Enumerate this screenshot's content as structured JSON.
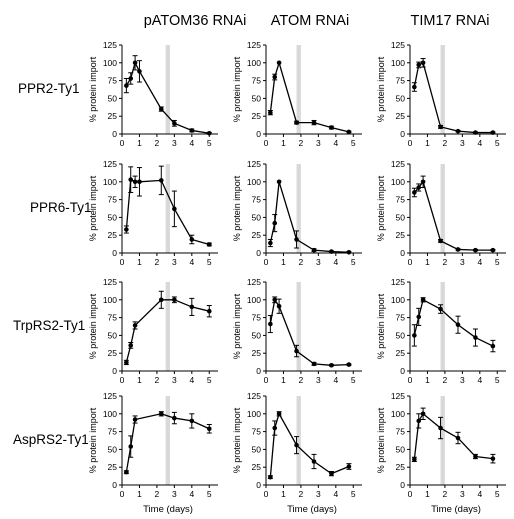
{
  "figure": {
    "column_titles": [
      "pATOM36 RNAi",
      "ATOM RNAi",
      "TIM17 RNAi"
    ],
    "row_labels": [
      "PPR2-Ty1",
      "PPR6-Ty1",
      "TrpRS2-Ty1",
      "AspRS2-Ty1"
    ],
    "ylabel": "% protein import",
    "xlabel": "Time (days)",
    "band_color": "#d9d9d9",
    "line_color": "#000000"
  },
  "chart_data": [
    {
      "type": "line",
      "row": "PPR2-Ty1",
      "column": "pATOM36 RNAi",
      "xlim": [
        0,
        5.5
      ],
      "ylim": [
        0,
        125
      ],
      "xticks": [
        0,
        1,
        2,
        3,
        4,
        5
      ],
      "yticks": [
        0,
        25,
        50,
        75,
        100,
        125
      ],
      "shaded_band": [
        2.5,
        2.75
      ],
      "x": [
        0.25,
        0.5,
        0.75,
        1,
        2.25,
        3,
        4,
        5
      ],
      "y": [
        68,
        78,
        100,
        88,
        35,
        15,
        5,
        1
      ],
      "yerr": [
        10,
        8,
        10,
        15,
        3,
        4,
        2,
        1
      ]
    },
    {
      "type": "line",
      "row": "PPR2-Ty1",
      "column": "ATOM RNAi",
      "xlim": [
        0,
        5.5
      ],
      "ylim": [
        0,
        125
      ],
      "xticks": [
        0,
        1,
        2,
        3,
        4,
        5
      ],
      "yticks": [
        0,
        25,
        50,
        75,
        100,
        125
      ],
      "shaded_band": [
        1.75,
        2.0
      ],
      "x": [
        0.25,
        0.5,
        0.75,
        1.75,
        2.75,
        3.75,
        4.75
      ],
      "y": [
        30,
        80,
        100,
        16,
        16,
        9,
        3
      ],
      "yerr": [
        3,
        4,
        0,
        2,
        3,
        2,
        1
      ]
    },
    {
      "type": "line",
      "row": "PPR2-Ty1",
      "column": "TIM17 RNAi",
      "xlim": [
        0,
        5.5
      ],
      "ylim": [
        0,
        125
      ],
      "xticks": [
        0,
        1,
        2,
        3,
        4,
        5
      ],
      "yticks": [
        0,
        25,
        50,
        75,
        100,
        125
      ],
      "shaded_band": [
        1.75,
        2.0
      ],
      "x": [
        0.25,
        0.5,
        0.75,
        1.75,
        2.75,
        3.75,
        4.75
      ],
      "y": [
        66,
        97,
        100,
        10,
        4,
        2,
        2
      ],
      "yerr": [
        6,
        4,
        6,
        2,
        1,
        1,
        1
      ]
    },
    {
      "type": "line",
      "row": "PPR6-Ty1",
      "column": "pATOM36 RNAi",
      "xlim": [
        0,
        5.5
      ],
      "ylim": [
        0,
        125
      ],
      "xticks": [
        0,
        1,
        2,
        3,
        4,
        5
      ],
      "yticks": [
        0,
        25,
        50,
        75,
        100,
        125
      ],
      "shaded_band": [
        2.5,
        2.75
      ],
      "x": [
        0.25,
        0.5,
        0.75,
        1,
        2.25,
        3,
        4,
        5
      ],
      "y": [
        33,
        103,
        100,
        100,
        102,
        62,
        19,
        12
      ],
      "yerr": [
        5,
        18,
        8,
        20,
        20,
        25,
        6,
        2
      ]
    },
    {
      "type": "line",
      "row": "PPR6-Ty1",
      "column": "ATOM RNAi",
      "xlim": [
        0,
        5.5
      ],
      "ylim": [
        0,
        125
      ],
      "xticks": [
        0,
        1,
        2,
        3,
        4,
        5
      ],
      "yticks": [
        0,
        25,
        50,
        75,
        100,
        125
      ],
      "shaded_band": [
        1.75,
        2.0
      ],
      "x": [
        0.25,
        0.5,
        0.75,
        1.75,
        2.75,
        3.75,
        4.75
      ],
      "y": [
        14,
        42,
        100,
        19,
        4,
        2,
        1
      ],
      "yerr": [
        5,
        12,
        0,
        12,
        2,
        1,
        1
      ]
    },
    {
      "type": "line",
      "row": "PPR6-Ty1",
      "column": "TIM17 RNAi",
      "xlim": [
        0,
        5.5
      ],
      "ylim": [
        0,
        125
      ],
      "xticks": [
        0,
        1,
        2,
        3,
        4,
        5
      ],
      "yticks": [
        0,
        25,
        50,
        75,
        100,
        125
      ],
      "shaded_band": [
        1.75,
        2.0
      ],
      "x": [
        0.25,
        0.5,
        0.75,
        1.75,
        2.75,
        3.75,
        4.75
      ],
      "y": [
        85,
        92,
        100,
        17,
        5,
        4,
        4
      ],
      "yerr": [
        6,
        5,
        8,
        2,
        1,
        1,
        1
      ]
    },
    {
      "type": "line",
      "row": "TrpRS2-Ty1",
      "column": "pATOM36 RNAi",
      "xlim": [
        0,
        5.5
      ],
      "ylim": [
        0,
        125
      ],
      "xticks": [
        0,
        1,
        2,
        3,
        4,
        5
      ],
      "yticks": [
        0,
        25,
        50,
        75,
        100,
        125
      ],
      "shaded_band": [
        2.5,
        2.75
      ],
      "x": [
        0.25,
        0.5,
        0.75,
        2.25,
        3,
        4,
        5
      ],
      "y": [
        12,
        36,
        64,
        100,
        100,
        90,
        84
      ],
      "yerr": [
        3,
        4,
        5,
        12,
        4,
        12,
        8
      ]
    },
    {
      "type": "line",
      "row": "TrpRS2-Ty1",
      "column": "ATOM RNAi",
      "xlim": [
        0,
        5.5
      ],
      "ylim": [
        0,
        125
      ],
      "xticks": [
        0,
        1,
        2,
        3,
        4,
        5
      ],
      "yticks": [
        0,
        25,
        50,
        75,
        100,
        125
      ],
      "shaded_band": [
        1.75,
        2.0
      ],
      "x": [
        0.25,
        0.5,
        0.75,
        1.75,
        2.75,
        3.75,
        4.75
      ],
      "y": [
        66,
        100,
        91,
        28,
        10,
        8,
        9
      ],
      "yerr": [
        12,
        4,
        10,
        8,
        2,
        1,
        1
      ]
    },
    {
      "type": "line",
      "row": "TrpRS2-Ty1",
      "column": "TIM17 RNAi",
      "xlim": [
        0,
        5.5
      ],
      "ylim": [
        0,
        125
      ],
      "xticks": [
        0,
        1,
        2,
        3,
        4,
        5
      ],
      "yticks": [
        0,
        25,
        50,
        75,
        100,
        125
      ],
      "shaded_band": [
        1.75,
        2.0
      ],
      "x": [
        0.25,
        0.5,
        0.75,
        1.75,
        2.75,
        3.75,
        4.75
      ],
      "y": [
        50,
        76,
        100,
        87,
        65,
        47,
        35
      ],
      "yerr": [
        15,
        12,
        3,
        6,
        12,
        12,
        8
      ]
    },
    {
      "type": "line",
      "row": "AspRS2-Ty1",
      "column": "pATOM36 RNAi",
      "xlim": [
        0,
        5.5
      ],
      "ylim": [
        0,
        125
      ],
      "xticks": [
        0,
        1,
        2,
        3,
        4,
        5
      ],
      "yticks": [
        0,
        25,
        50,
        75,
        100,
        125
      ],
      "shaded_band": [
        2.5,
        2.75
      ],
      "x": [
        0.25,
        0.5,
        0.75,
        2.25,
        3,
        4,
        5
      ],
      "y": [
        18,
        54,
        92,
        100,
        94,
        90,
        79
      ],
      "yerr": [
        2,
        15,
        5,
        3,
        8,
        10,
        6
      ]
    },
    {
      "type": "line",
      "row": "AspRS2-Ty1",
      "column": "ATOM RNAi",
      "xlim": [
        0,
        5.5
      ],
      "ylim": [
        0,
        125
      ],
      "xticks": [
        0,
        1,
        2,
        3,
        4,
        5
      ],
      "yticks": [
        0,
        25,
        50,
        75,
        100,
        125
      ],
      "shaded_band": [
        1.75,
        2.0
      ],
      "x": [
        0.25,
        0.5,
        0.75,
        1.75,
        2.75,
        3.75,
        4.75
      ],
      "y": [
        11,
        80,
        100,
        56,
        33,
        16,
        26
      ],
      "yerr": [
        2,
        10,
        3,
        12,
        10,
        3,
        4
      ]
    },
    {
      "type": "line",
      "row": "AspRS2-Ty1",
      "column": "TIM17 RNAi",
      "xlim": [
        0,
        5.5
      ],
      "ylim": [
        0,
        125
      ],
      "xticks": [
        0,
        1,
        2,
        3,
        4,
        5
      ],
      "yticks": [
        0,
        25,
        50,
        75,
        100,
        125
      ],
      "shaded_band": [
        1.75,
        2.0
      ],
      "x": [
        0.25,
        0.5,
        0.75,
        1.75,
        2.75,
        3.75,
        4.75
      ],
      "y": [
        36,
        90,
        100,
        80,
        66,
        40,
        37
      ],
      "yerr": [
        3,
        10,
        8,
        15,
        8,
        3,
        6
      ]
    }
  ]
}
